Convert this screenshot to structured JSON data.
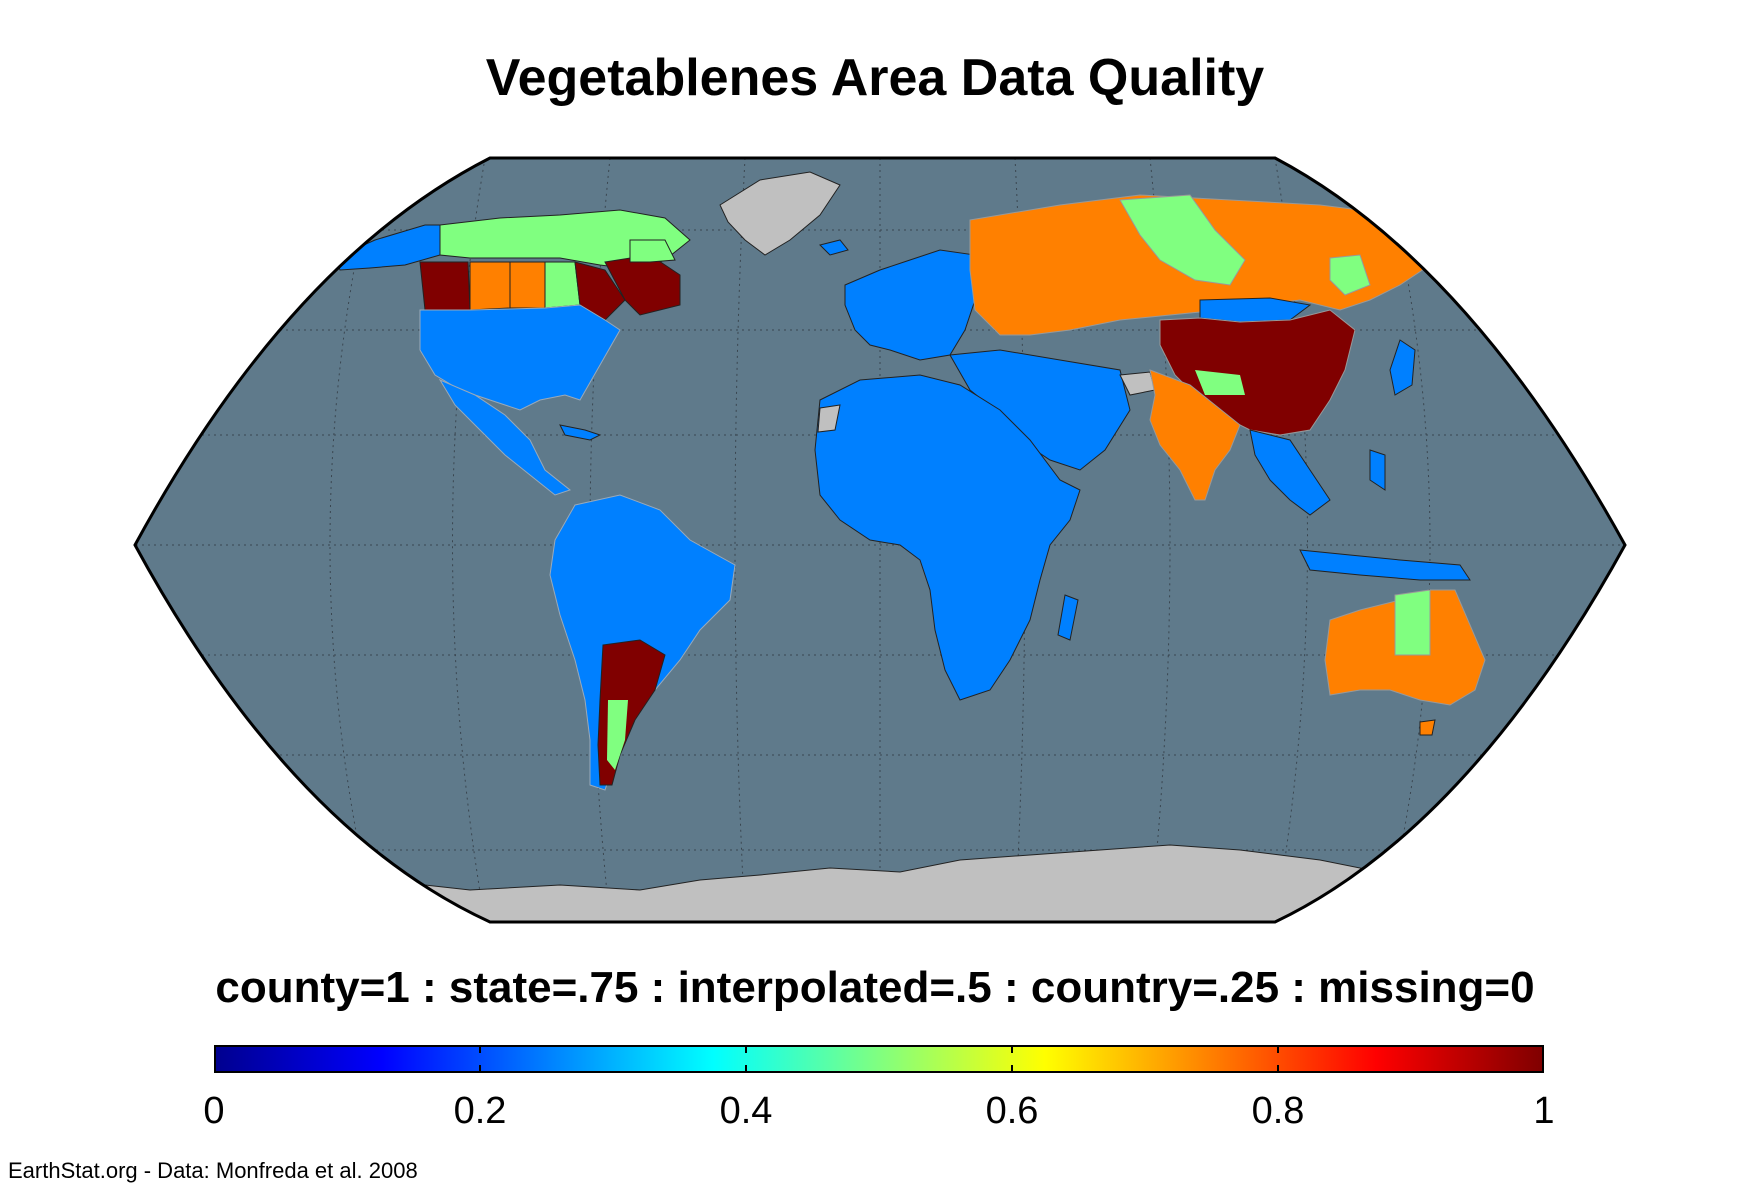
{
  "title": "Vegetablenes Area Data Quality",
  "legend_caption": "county=1 : state=.75 : interpolated=.5 : country=.25 : missing=0",
  "colorbar": {
    "ticks": [
      "0",
      "0.2",
      "0.4",
      "0.6",
      "0.8",
      "1"
    ],
    "stops": [
      "#00008f",
      "#0000ff",
      "#0080ff",
      "#00ffff",
      "#80ff80",
      "#ffff00",
      "#ff8000",
      "#ff0000",
      "#800000"
    ]
  },
  "footer": "EarthStat.org - Data: Monfreda et al. 2008",
  "map": {
    "projection": "Robinson",
    "ocean_color": "#5f7a8b",
    "no_data_color": "#c0c0c0",
    "categories": {
      "county": {
        "value": 1,
        "color": "#800000"
      },
      "state": {
        "value": 0.75,
        "color": "#ff8000"
      },
      "interpolated": {
        "value": 0.5,
        "color": "#80ff80"
      },
      "country": {
        "value": 0.25,
        "color": "#0080ff"
      },
      "missing": {
        "value": 0,
        "color": "#c0c0c0"
      }
    }
  }
}
